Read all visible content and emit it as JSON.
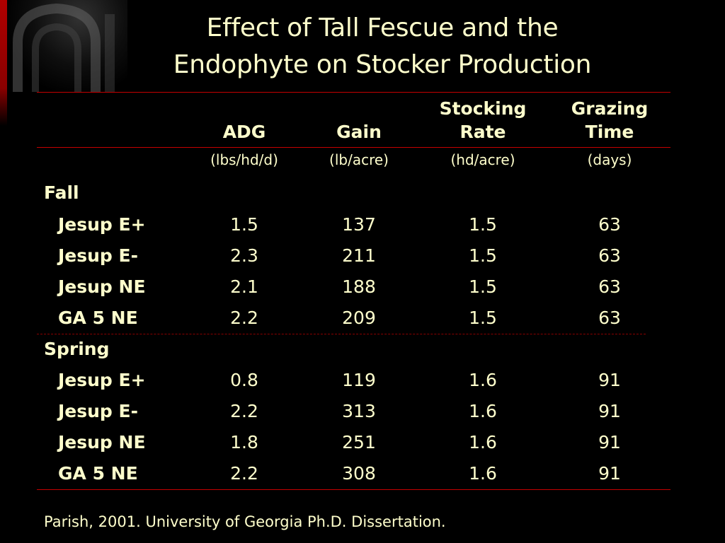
{
  "title_line1": "Effect of Tall Fescue and the",
  "title_line2": "Endophyte on Stocker Production",
  "columns": [
    {
      "header_line1": "",
      "header_line2": "ADG",
      "unit": "(lbs/hd/d)"
    },
    {
      "header_line1": "",
      "header_line2": "Gain",
      "unit": "(lb/acre)"
    },
    {
      "header_line1": "Stocking",
      "header_line2": "Rate",
      "unit": "(hd/acre)"
    },
    {
      "header_line1": "Grazing",
      "header_line2": "Time",
      "unit": "(days)"
    }
  ],
  "groups": [
    {
      "label": "Fall",
      "rows": [
        {
          "label": "Jesup E+",
          "values": [
            "1.5",
            "137",
            "1.5",
            "63"
          ]
        },
        {
          "label": "Jesup E-",
          "values": [
            "2.3",
            "211",
            "1.5",
            "63"
          ]
        },
        {
          "label": "Jesup NE",
          "values": [
            "2.1",
            "188",
            "1.5",
            "63"
          ]
        },
        {
          "label": "GA 5 NE",
          "values": [
            "2.2",
            "209",
            "1.5",
            "63"
          ]
        }
      ]
    },
    {
      "label": "Spring",
      "rows": [
        {
          "label": "Jesup E+",
          "values": [
            "0.8",
            "119",
            "1.6",
            "91"
          ]
        },
        {
          "label": "Jesup E-",
          "values": [
            "2.2",
            "313",
            "1.6",
            "91"
          ]
        },
        {
          "label": "Jesup NE",
          "values": [
            "1.8",
            "251",
            "1.6",
            "91"
          ]
        },
        {
          "label": "GA 5 NE",
          "values": [
            "2.2",
            "308",
            "1.6",
            "91"
          ]
        }
      ]
    }
  ],
  "footer": "Parish, 2001. University of Georgia Ph.D. Dissertation.",
  "colors": {
    "background": "#000000",
    "text": "#ffffcc",
    "rule": "#c40000",
    "accent_bar": "#b00000"
  },
  "icons": {
    "logo": "university-arch-logo"
  }
}
